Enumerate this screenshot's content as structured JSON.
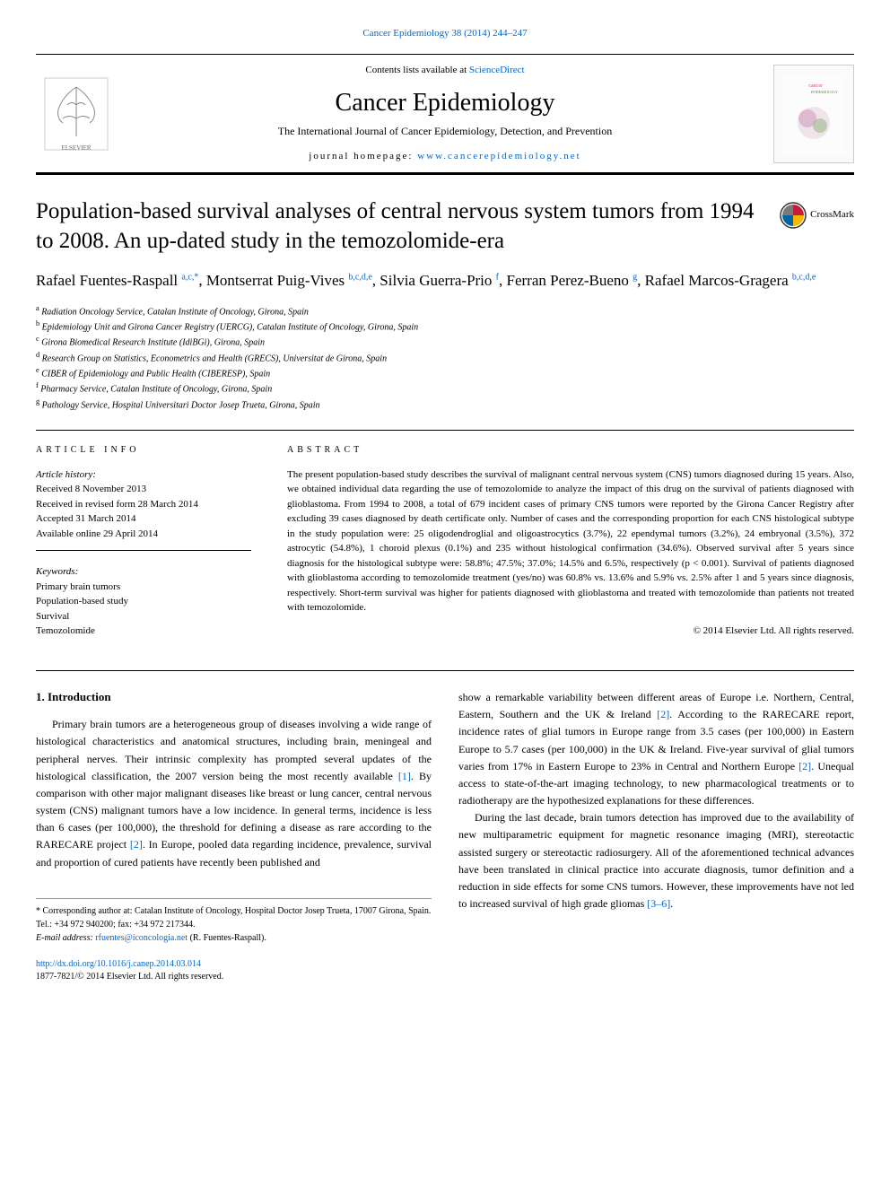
{
  "journal_link_top": "Cancer Epidemiology 38 (2014) 244–247",
  "header": {
    "contents_prefix": "Contents lists available at ",
    "contents_link": "ScienceDirect",
    "journal_title": "Cancer Epidemiology",
    "journal_subtitle": "The International Journal of Cancer Epidemiology, Detection, and Prevention",
    "homepage_prefix": "journal homepage: ",
    "homepage_link": "www.cancerepidemiology.net"
  },
  "crossmark_label": "CrossMark",
  "article": {
    "title": "Population-based survival analyses of central nervous system tumors from 1994 to 2008. An up-dated study in the temozolomide-era",
    "authors_html": "Rafael Fuentes-Raspall <sup><a>a</a>,<a>c</a>,*</sup>, Montserrat Puig-Vives <sup><a>b</a>,<a>c</a>,<a>d</a>,<a>e</a></sup>, Silvia Guerra-Prio <sup><a>f</a></sup>, Ferran Perez-Bueno <sup><a>g</a></sup>, Rafael Marcos-Gragera <sup><a>b</a>,<a>c</a>,<a>d</a>,<a>e</a></sup>",
    "affiliations": [
      {
        "key": "a",
        "text": "Radiation Oncology Service, Catalan Institute of Oncology, Girona, Spain"
      },
      {
        "key": "b",
        "text": "Epidemiology Unit and Girona Cancer Registry (UERCG), Catalan Institute of Oncology, Girona, Spain"
      },
      {
        "key": "c",
        "text": "Girona Biomedical Research Institute (IdiBGi), Girona, Spain"
      },
      {
        "key": "d",
        "text": "Research Group on Statistics, Econometrics and Health (GRECS), Universitat de Girona, Spain"
      },
      {
        "key": "e",
        "text": "CIBER of Epidemiology and Public Health (CIBERESP), Spain"
      },
      {
        "key": "f",
        "text": "Pharmacy Service, Catalan Institute of Oncology, Girona, Spain"
      },
      {
        "key": "g",
        "text": "Pathology Service, Hospital Universitari Doctor Josep Trueta, Girona, Spain"
      }
    ]
  },
  "article_info": {
    "header": "ARTICLE INFO",
    "history_label": "Article history:",
    "history": [
      "Received 8 November 2013",
      "Received in revised form 28 March 2014",
      "Accepted 31 March 2014",
      "Available online 29 April 2014"
    ],
    "keywords_label": "Keywords:",
    "keywords": [
      "Primary brain tumors",
      "Population-based study",
      "Survival",
      "Temozolomide"
    ]
  },
  "abstract": {
    "header": "ABSTRACT",
    "text": "The present population-based study describes the survival of malignant central nervous system (CNS) tumors diagnosed during 15 years. Also, we obtained individual data regarding the use of temozolomide to analyze the impact of this drug on the survival of patients diagnosed with glioblastoma. From 1994 to 2008, a total of 679 incident cases of primary CNS tumors were reported by the Girona Cancer Registry after excluding 39 cases diagnosed by death certificate only. Number of cases and the corresponding proportion for each CNS histological subtype in the study population were: 25 oligodendroglial and oligoastrocytics (3.7%), 22 ependymal tumors (3.2%), 24 embryonal (3.5%), 372 astrocytic (54.8%), 1 choroid plexus (0.1%) and 235 without histological confirmation (34.6%). Observed survival after 5 years since diagnosis for the histological subtype were: 58.8%; 47.5%; 37.0%; 14.5% and 6.5%, respectively (p < 0.001). Survival of patients diagnosed with glioblastoma according to temozolomide treatment (yes/no) was 60.8% vs. 13.6% and 5.9% vs. 2.5% after 1 and 5 years since diagnosis, respectively. Short-term survival was higher for patients diagnosed with glioblastoma and treated with temozolomide than patients not treated with temozolomide.",
    "copyright": "© 2014 Elsevier Ltd. All rights reserved."
  },
  "body": {
    "section1_title": "1. Introduction",
    "col1_p1": "Primary brain tumors are a heterogeneous group of diseases involving a wide range of histological characteristics and anatomical structures, including brain, meningeal and peripheral nerves. Their intrinsic complexity has prompted several updates of the histological classification, the 2007 version being the most recently available ",
    "col1_ref1": "[1]",
    "col1_p1b": ". By comparison with other major malignant diseases like breast or lung cancer, central nervous system (CNS) malignant tumors have a low incidence. In general terms, incidence is less than 6 cases (per 100,000), the threshold for defining a disease as rare according to the RARECARE project ",
    "col1_ref2": "[2]",
    "col1_p1c": ". In Europe, pooled data regarding incidence, prevalence, survival and proportion of cured patients have recently been published and",
    "col2_p1": "show a remarkable variability between different areas of Europe i.e. Northern, Central, Eastern, Southern and the UK & Ireland ",
    "col2_ref1": "[2]",
    "col2_p1b": ". According to the RARECARE report, incidence rates of glial tumors in Europe range from 3.5 cases (per 100,000) in Eastern Europe to 5.7 cases (per 100,000) in the UK & Ireland. Five-year survival of glial tumors varies from 17% in Eastern Europe to 23% in Central and Northern Europe ",
    "col2_ref2": "[2]",
    "col2_p1c": ". Unequal access to state-of-the-art imaging technology, to new pharmacological treatments or to radiotherapy are the hypothesized explanations for these differences.",
    "col2_p2": "During the last decade, brain tumors detection has improved due to the availability of new multiparametric equipment for magnetic resonance imaging (MRI), stereotactic assisted surgery or stereotactic radiosurgery. All of the aforementioned technical advances have been translated in clinical practice into accurate diagnosis, tumor definition and a reduction in side effects for some CNS tumors. However, these improvements have not led to increased survival of high grade gliomas ",
    "col2_ref3": "[3–6]",
    "col2_p2b": "."
  },
  "footer": {
    "corresponding_prefix": "* Corresponding author at: Catalan Institute of Oncology, Hospital Doctor Josep Trueta, 17007 Girona, Spain. Tel.: +34 972 940200; fax: +34 972 217344.",
    "email_label": "E-mail address: ",
    "email": "rfuentes@iconcologia.net",
    "email_suffix": " (R. Fuentes-Raspall).",
    "doi": "http://dx.doi.org/10.1016/j.canep.2014.03.014",
    "issn": "1877-7821/© 2014 Elsevier Ltd. All rights reserved."
  },
  "colors": {
    "link": "#0066cc",
    "text": "#000000",
    "border": "#000000"
  }
}
